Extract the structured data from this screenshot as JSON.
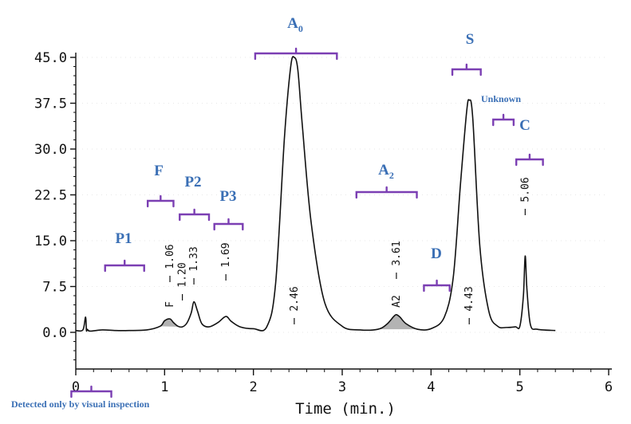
{
  "chart_data": {
    "type": "line",
    "title": "",
    "xlabel": "Time (min.)",
    "ylabel": "",
    "xlim": [
      0,
      6
    ],
    "ylim": [
      -6,
      45
    ],
    "x_ticks": [
      "0",
      "1",
      "2",
      "3",
      "4",
      "5",
      "6"
    ],
    "y_ticks": [
      "45.0",
      "37.5",
      "30.0",
      "22.5",
      "15.0",
      "7.5",
      "0.0"
    ],
    "series": [
      {
        "name": "chromatogram",
        "x": [
          0.0,
          0.08,
          0.11,
          0.12,
          0.13,
          0.16,
          0.3,
          0.45,
          0.6,
          0.8,
          0.95,
          1.0,
          1.06,
          1.1,
          1.15,
          1.2,
          1.25,
          1.3,
          1.33,
          1.37,
          1.42,
          1.5,
          1.6,
          1.69,
          1.75,
          1.85,
          2.0,
          2.15,
          2.25,
          2.35,
          2.42,
          2.46,
          2.5,
          2.55,
          2.65,
          2.8,
          3.0,
          3.2,
          3.4,
          3.5,
          3.58,
          3.61,
          3.65,
          3.72,
          3.85,
          4.0,
          4.15,
          4.25,
          4.33,
          4.4,
          4.43,
          4.47,
          4.55,
          4.65,
          4.75,
          4.85,
          4.95,
          5.0,
          5.04,
          5.06,
          5.08,
          5.12,
          5.2,
          5.4
        ],
        "values": [
          0.3,
          0.4,
          2.5,
          0.3,
          0.5,
          0.2,
          0.4,
          0.3,
          0.3,
          0.4,
          1.0,
          1.9,
          2.2,
          1.6,
          1.0,
          0.9,
          1.5,
          3.2,
          5.0,
          3.5,
          1.4,
          0.9,
          1.6,
          2.6,
          1.8,
          0.9,
          0.6,
          0.9,
          8.0,
          32.0,
          43.5,
          45.0,
          43.0,
          34.0,
          18.0,
          5.0,
          1.0,
          0.4,
          0.5,
          1.3,
          2.6,
          2.9,
          2.5,
          1.4,
          0.5,
          0.6,
          2.5,
          9.0,
          24.0,
          36.0,
          38.0,
          35.0,
          14.0,
          3.5,
          1.0,
          0.8,
          0.9,
          1.0,
          6.0,
          12.5,
          7.0,
          1.2,
          0.5,
          0.3
        ]
      }
    ],
    "peaks": [
      {
        "time": 1.06,
        "label": "1.06",
        "tag": "F"
      },
      {
        "time": 1.2,
        "label": "1.20",
        "tag": ""
      },
      {
        "time": 1.33,
        "label": "1.33",
        "tag": ""
      },
      {
        "time": 1.69,
        "label": "1.69",
        "tag": ""
      },
      {
        "time": 2.46,
        "label": "2.46",
        "tag": ""
      },
      {
        "time": 3.61,
        "label": "3.61",
        "tag": "A2"
      },
      {
        "time": 4.43,
        "label": "4.43",
        "tag": ""
      },
      {
        "time": 5.06,
        "label": "5.06",
        "tag": ""
      }
    ],
    "regions": [
      {
        "label": "P1",
        "sub": "",
        "x0": 0.33,
        "x1": 0.77
      },
      {
        "label": "F",
        "sub": "",
        "x0": 0.81,
        "x1": 1.1
      },
      {
        "label": "P2",
        "sub": "",
        "x0": 1.17,
        "x1": 1.5
      },
      {
        "label": "P3",
        "sub": "",
        "x0": 1.56,
        "x1": 1.88
      },
      {
        "label": "A",
        "sub": "0",
        "x0": 2.02,
        "x1": 2.94
      },
      {
        "label": "A",
        "sub": "2",
        "x0": 3.16,
        "x1": 3.84
      },
      {
        "label": "D",
        "sub": "",
        "x0": 3.92,
        "x1": 4.21
      },
      {
        "label": "S",
        "sub": "",
        "x0": 4.24,
        "x1": 4.56
      },
      {
        "label": "C",
        "sub": "",
        "x0": 4.96,
        "x1": 5.26
      }
    ],
    "notes": [
      {
        "text": "Unknown",
        "x0": 4.7,
        "x1": 4.93
      }
    ],
    "footnote": {
      "text": "Detected only by visual inspection",
      "x0": -0.05,
      "x1": 0.4
    },
    "shaded_peaks": [
      "F",
      "A2"
    ]
  },
  "colors": {
    "annotation_blue": "#3a6fb5",
    "bracket_purple": "#7b3fb3",
    "ink": "#111111",
    "fill": "#999999"
  }
}
